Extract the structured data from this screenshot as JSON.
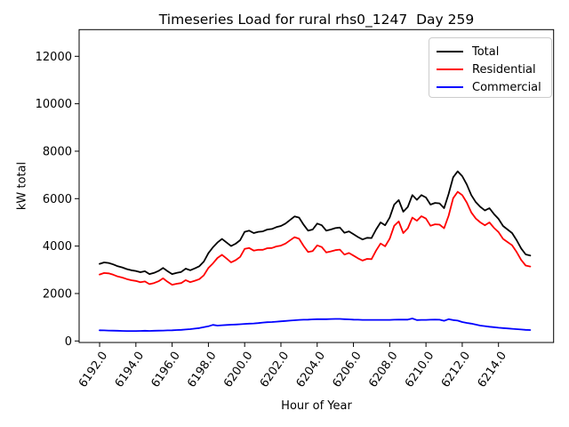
{
  "chart_data": {
    "type": "line",
    "title": "Timeseries Load for rural rhs0_1247  Day 259",
    "xlabel": "Hour of Year",
    "ylabel": "kW total",
    "xlim": [
      6190.87,
      6217.04
    ],
    "ylim": [
      -64,
      13125
    ],
    "grid": false,
    "legend_position": "upper right",
    "xticks": [
      {
        "value": 6192,
        "label": "6192.0"
      },
      {
        "value": 6194,
        "label": "6194.0"
      },
      {
        "value": 6196,
        "label": "6196.0"
      },
      {
        "value": 6198,
        "label": "6198.0"
      },
      {
        "value": 6200,
        "label": "6200.0"
      },
      {
        "value": 6202,
        "label": "6202.0"
      },
      {
        "value": 6204,
        "label": "6204.0"
      },
      {
        "value": 6206,
        "label": "6206.0"
      },
      {
        "value": 6208,
        "label": "6208.0"
      },
      {
        "value": 6210,
        "label": "6210.0"
      },
      {
        "value": 6212,
        "label": "6212.0"
      },
      {
        "value": 6214,
        "label": "6214.0"
      }
    ],
    "yticks": [
      {
        "value": 0,
        "label": "0"
      },
      {
        "value": 2000,
        "label": "2000"
      },
      {
        "value": 4000,
        "label": "4000"
      },
      {
        "value": 6000,
        "label": "6000"
      },
      {
        "value": 8000,
        "label": "8000"
      },
      {
        "value": 10000,
        "label": "10000"
      },
      {
        "value": 12000,
        "label": "12000"
      }
    ],
    "x": [
      6192.0,
      6192.25,
      6192.5,
      6192.75,
      6193.0,
      6193.25,
      6193.5,
      6193.75,
      6194.0,
      6194.25,
      6194.5,
      6194.75,
      6195.0,
      6195.25,
      6195.5,
      6195.75,
      6196.0,
      6196.25,
      6196.5,
      6196.75,
      6197.0,
      6197.25,
      6197.5,
      6197.75,
      6198.0,
      6198.25,
      6198.5,
      6198.75,
      6199.0,
      6199.25,
      6199.5,
      6199.75,
      6200.0,
      6200.25,
      6200.5,
      6200.75,
      6201.0,
      6201.25,
      6201.5,
      6201.75,
      6202.0,
      6202.25,
      6202.5,
      6202.75,
      6203.0,
      6203.25,
      6203.5,
      6203.75,
      6204.0,
      6204.25,
      6204.5,
      6204.75,
      6205.0,
      6205.25,
      6205.5,
      6205.75,
      6206.0,
      6206.25,
      6206.5,
      6206.75,
      6207.0,
      6207.25,
      6207.5,
      6207.75,
      6208.0,
      6208.25,
      6208.5,
      6208.75,
      6209.0,
      6209.25,
      6209.5,
      6209.75,
      6210.0,
      6210.25,
      6210.5,
      6210.75,
      6211.0,
      6211.25,
      6211.5,
      6211.75,
      6212.0,
      6212.25,
      6212.5,
      6212.75,
      6213.0,
      6213.25,
      6213.5,
      6213.75,
      6214.0,
      6214.25,
      6214.5,
      6214.75,
      6215.0,
      6215.25,
      6215.5,
      6215.75
    ],
    "series": [
      {
        "name": "Total",
        "color": "#000000",
        "values": [
          3250,
          3310,
          3290,
          3230,
          3150,
          3100,
          3030,
          2980,
          2950,
          2900,
          2940,
          2820,
          2870,
          2950,
          3080,
          2940,
          2820,
          2870,
          2910,
          3050,
          2980,
          3060,
          3150,
          3350,
          3700,
          3950,
          4150,
          4300,
          4150,
          4000,
          4100,
          4250,
          4600,
          4650,
          4550,
          4600,
          4620,
          4700,
          4720,
          4800,
          4850,
          4950,
          5100,
          5250,
          5200,
          4900,
          4650,
          4700,
          4950,
          4880,
          4650,
          4700,
          4760,
          4780,
          4560,
          4620,
          4500,
          4380,
          4280,
          4350,
          4340,
          4700,
          5000,
          4880,
          5200,
          5750,
          5940,
          5450,
          5650,
          6150,
          5950,
          6150,
          6050,
          5750,
          5820,
          5800,
          5600,
          6200,
          6900,
          7150,
          6950,
          6600,
          6150,
          5850,
          5650,
          5500,
          5600,
          5350,
          5150,
          4850,
          4700,
          4550,
          4250,
          3900,
          3650,
          3600
        ]
      },
      {
        "name": "Residential",
        "color": "#ff0000",
        "values": [
          2800,
          2865,
          2850,
          2795,
          2720,
          2675,
          2610,
          2560,
          2530,
          2475,
          2510,
          2395,
          2440,
          2515,
          2640,
          2495,
          2370,
          2410,
          2440,
          2565,
          2480,
          2540,
          2605,
          2770,
          3080,
          3270,
          3500,
          3635,
          3475,
          3315,
          3405,
          3545,
          3880,
          3920,
          3810,
          3845,
          3845,
          3910,
          3920,
          3985,
          4020,
          4105,
          4240,
          4375,
          4310,
          4005,
          3750,
          3790,
          4030,
          3960,
          3730,
          3775,
          3830,
          3850,
          3640,
          3710,
          3600,
          3485,
          3390,
          3460,
          3450,
          3810,
          4110,
          3990,
          4310,
          4855,
          5040,
          4550,
          4750,
          5200,
          5070,
          5260,
          5160,
          4855,
          4920,
          4905,
          4750,
          5280,
          6020,
          6290,
          6150,
          5840,
          5420,
          5160,
          5000,
          4875,
          5000,
          4770,
          4590,
          4305,
          4170,
          4035,
          3750,
          3415,
          3180,
          3140
        ]
      },
      {
        "name": "Commercial",
        "color": "#0000ff",
        "values": [
          450,
          445,
          440,
          435,
          430,
          425,
          420,
          420,
          420,
          425,
          430,
          425,
          430,
          435,
          440,
          445,
          450,
          460,
          470,
          485,
          500,
          520,
          545,
          580,
          620,
          680,
          650,
          665,
          675,
          685,
          695,
          705,
          720,
          730,
          740,
          755,
          775,
          790,
          800,
          815,
          830,
          845,
          860,
          875,
          890,
          895,
          900,
          910,
          920,
          920,
          920,
          925,
          930,
          930,
          920,
          910,
          900,
          895,
          890,
          890,
          890,
          890,
          890,
          890,
          890,
          895,
          900,
          900,
          900,
          950,
          880,
          890,
          890,
          895,
          900,
          895,
          850,
          920,
          880,
          860,
          800,
          760,
          730,
          690,
          650,
          625,
          600,
          580,
          560,
          545,
          530,
          515,
          500,
          485,
          470,
          460
        ]
      }
    ]
  }
}
